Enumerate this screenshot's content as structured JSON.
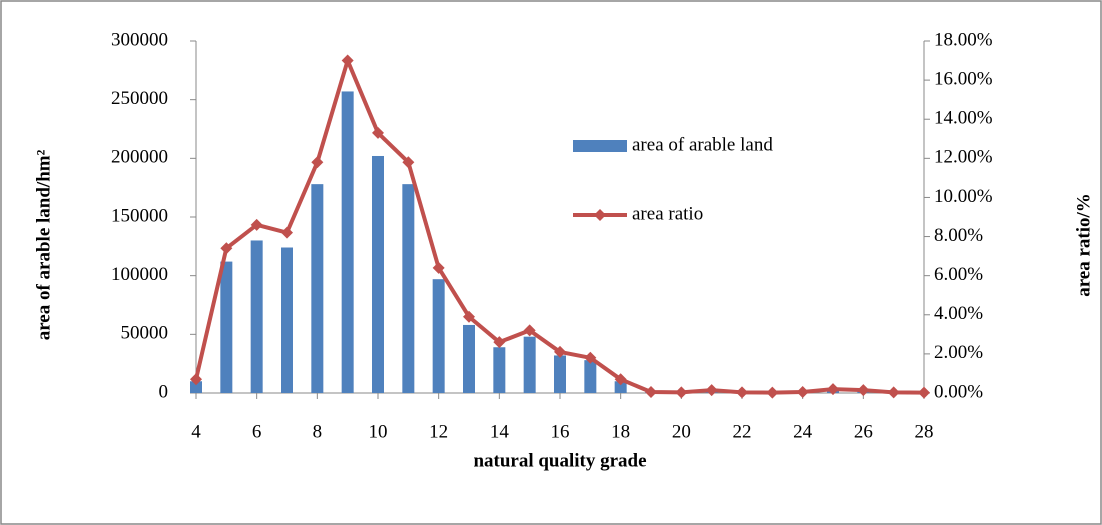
{
  "chart_data": {
    "type": "bar-line",
    "x_label": "natural quality grade",
    "y_label": "area of arable land/hm²",
    "y2_label": "area ratio/%",
    "x": [
      4,
      5,
      6,
      7,
      8,
      9,
      10,
      11,
      12,
      13,
      14,
      15,
      16,
      17,
      18,
      19,
      20,
      21,
      22,
      23,
      24,
      25,
      26,
      27,
      28
    ],
    "xlim": [
      4,
      28
    ],
    "xticks": [
      4,
      6,
      8,
      10,
      12,
      14,
      16,
      18,
      20,
      22,
      24,
      26,
      28
    ],
    "ylim": [
      0,
      300000
    ],
    "yticks": [
      0,
      50000,
      100000,
      150000,
      200000,
      250000,
      300000
    ],
    "y2lim": [
      0,
      18
    ],
    "y2ticks": [
      {
        "value": 0,
        "label": "0.00%"
      },
      {
        "value": 2,
        "label": "2.00%"
      },
      {
        "value": 4,
        "label": "4.00%"
      },
      {
        "value": 6,
        "label": "6.00%"
      },
      {
        "value": 8,
        "label": "8.00%"
      },
      {
        "value": 10,
        "label": "10.00%"
      },
      {
        "value": 12,
        "label": "12.00%"
      },
      {
        "value": 14,
        "label": "14.00%"
      },
      {
        "value": 16,
        "label": "16.00%"
      },
      {
        "value": 18,
        "label": "18.00%"
      }
    ],
    "legend": "inside-center",
    "series": [
      {
        "name": "area of arable land",
        "type": "bar",
        "color": "#4f81bd",
        "values": [
          10000,
          112000,
          130000,
          124000,
          178000,
          257000,
          202000,
          178000,
          97000,
          58000,
          39000,
          48000,
          32000,
          28000,
          10000,
          500,
          300,
          2000,
          500,
          300,
          800,
          3000,
          2000,
          500,
          300
        ]
      },
      {
        "name": "area ratio",
        "type": "line",
        "axis": "y2",
        "color": "#c0504d",
        "values": [
          0.7,
          7.4,
          8.6,
          8.2,
          11.8,
          17.0,
          13.3,
          11.8,
          6.4,
          3.9,
          2.6,
          3.2,
          2.1,
          1.8,
          0.7,
          0.05,
          0.03,
          0.15,
          0.03,
          0.02,
          0.05,
          0.2,
          0.15,
          0.03,
          0.02
        ]
      }
    ]
  }
}
